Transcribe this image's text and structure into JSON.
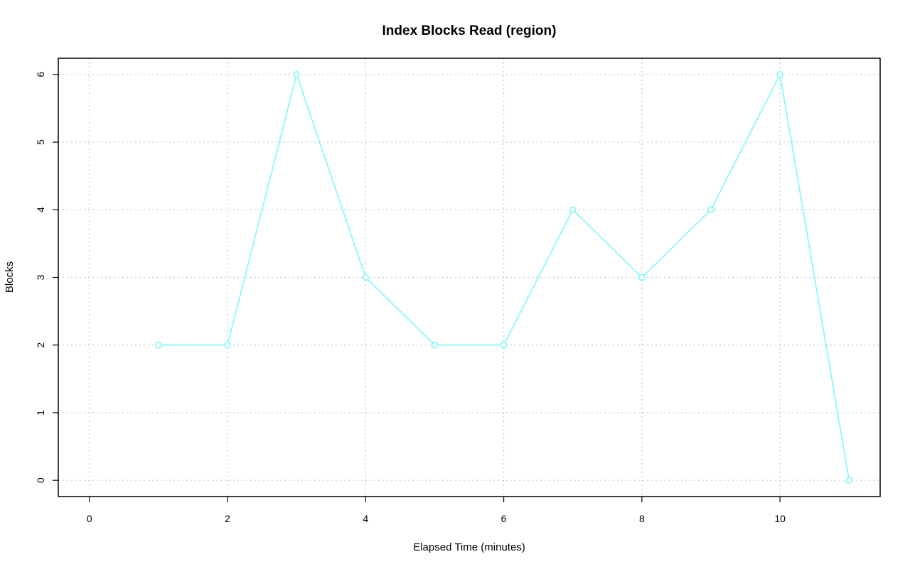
{
  "chart_data": {
    "type": "line",
    "title": "Index Blocks Read (region)",
    "xlabel": "Elapsed Time (minutes)",
    "ylabel": "Blocks",
    "xlim": [
      -0.45,
      11.45
    ],
    "ylim": [
      -0.24,
      6.24
    ],
    "x_ticks": [
      0,
      2,
      4,
      6,
      8,
      10
    ],
    "y_ticks": [
      0,
      1,
      2,
      3,
      4,
      5,
      6
    ],
    "grid": true,
    "series": [
      {
        "color": "#7ff7f7",
        "x": [
          1,
          2,
          3,
          4,
          5,
          6,
          7,
          8,
          9,
          10,
          11
        ],
        "y": [
          2,
          2,
          6,
          3,
          2,
          2,
          4,
          3,
          4,
          6,
          0
        ]
      }
    ]
  }
}
